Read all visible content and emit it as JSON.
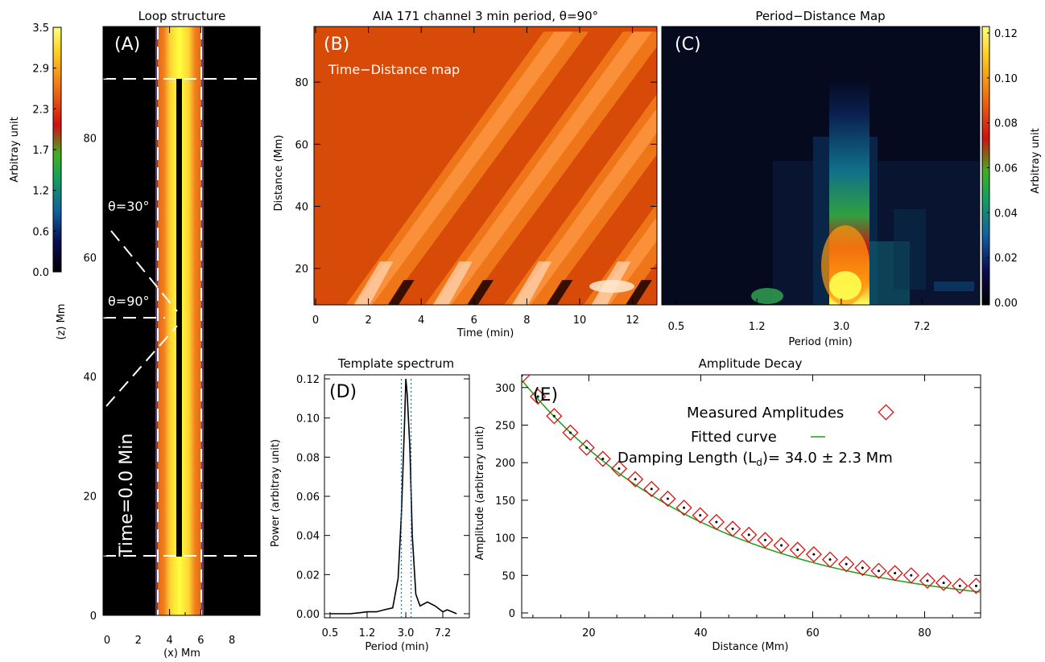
{
  "colorbar_left": {
    "label": "Arbitray unit",
    "ticks": [
      "0.0",
      "0.6",
      "1.2",
      "1.7",
      "2.3",
      "2.9",
      "3.5"
    ]
  },
  "panelA": {
    "tag": "(A)",
    "title": "Loop structure",
    "xlabel": "(x) Mm",
    "ylabel": "(z) Mm",
    "theta30": "θ=30°",
    "theta90": "θ=90°",
    "time_label": "Time=0.0 Min",
    "xticks": [
      "0",
      "2",
      "4",
      "6",
      "8"
    ],
    "yticks": [
      "0",
      "20",
      "40",
      "60",
      "80"
    ]
  },
  "panelB": {
    "tag": "(B)",
    "title": "AIA 171 channel 3 min period, θ=90°",
    "subtitle": "Time−Distance map",
    "xlabel": "Time (min)",
    "ylabel": "Distance (Mm)",
    "xticks": [
      "0",
      "2",
      "4",
      "6",
      "8",
      "10",
      "12"
    ],
    "yticks": [
      "20",
      "40",
      "60",
      "80"
    ]
  },
  "panelC": {
    "tag": "(C)",
    "title": "Period−Distance Map",
    "xlabel": "Period (min)",
    "xticks": [
      "0.5",
      "1.2",
      "3.0",
      "7.2"
    ],
    "colorbar_label": "Arbitray unit",
    "colorbar_ticks": [
      "0.00",
      "0.02",
      "0.04",
      "0.06",
      "0.08",
      "0.10",
      "0.12"
    ]
  },
  "panelD": {
    "tag": "(D)",
    "title": "Template spectrum",
    "xlabel": "Period (min)",
    "ylabel": "Power (arbitray unit)",
    "xticks": [
      "0.5",
      "1.2",
      "3.0",
      "7.2"
    ],
    "yticks": [
      "0.00",
      "0.02",
      "0.04",
      "0.06",
      "0.08",
      "0.10",
      "0.12"
    ]
  },
  "panelE": {
    "tag": "(E)",
    "title": "Amplitude Decay",
    "xlabel": "Distance (Mm)",
    "ylabel": "Amplitude (arbitrary unit)",
    "legend_measured": "Measured Amplitudes",
    "legend_fitted": "Fitted curve",
    "damping_text": "Damping Length (L",
    "damping_sub": "d",
    "damping_value": ")= 34.0 ± 2.3 Mm",
    "xticks": [
      "20",
      "40",
      "60",
      "80"
    ],
    "yticks": [
      "0",
      "50",
      "100",
      "150",
      "200",
      "250",
      "300"
    ]
  },
  "colors": {
    "fit_line": "#1aa01a",
    "marker": "#e01010"
  },
  "chart_data": [
    {
      "type": "line",
      "panel": "D",
      "title": "Template spectrum",
      "xlabel": "Period (min)",
      "ylabel": "Power (arbitray unit)",
      "ylim": [
        0,
        0.12
      ],
      "x": [
        0.5,
        0.8,
        1.0,
        1.2,
        1.5,
        1.8,
        2.2,
        2.5,
        2.7,
        2.9,
        3.0,
        3.1,
        3.3,
        3.5,
        3.8,
        4.2,
        5.0,
        6.0,
        7.2,
        8.0,
        9.0,
        10.0
      ],
      "values": [
        0.0,
        0.0,
        0.0005,
        0.001,
        0.001,
        0.002,
        0.003,
        0.018,
        0.05,
        0.095,
        0.12,
        0.112,
        0.085,
        0.04,
        0.01,
        0.004,
        0.006,
        0.004,
        0.001,
        0.002,
        0.001,
        0.0
      ]
    },
    {
      "type": "scatter",
      "panel": "E",
      "title": "Amplitude Decay",
      "xlabel": "Distance (Mm)",
      "ylabel": "Amplitude (arbitrary unit)",
      "xlim": [
        8,
        90
      ],
      "ylim": [
        0,
        325
      ],
      "series": [
        {
          "name": "Measured Amplitudes",
          "x": [
            8,
            10.9,
            13.8,
            16.7,
            19.6,
            22.5,
            25.4,
            28.3,
            31.2,
            34.1,
            37,
            39.9,
            42.8,
            45.7,
            48.6,
            51.5,
            54.4,
            57.3,
            60.2,
            63.1,
            66,
            68.9,
            71.8,
            74.7,
            77.6,
            80.5,
            83.4,
            86.3,
            89.2
          ],
          "values": [
            316,
            288,
            262,
            240,
            220,
            205,
            192,
            178,
            165,
            152,
            140,
            130,
            121,
            112,
            104,
            97,
            90,
            84,
            78,
            71,
            65,
            60,
            56,
            53,
            50,
            43,
            40,
            36,
            36
          ]
        },
        {
          "name": "Fitted curve",
          "model": "exponential",
          "L_d": 34.0,
          "x": [
            8,
            20,
            30,
            40,
            50,
            60,
            70,
            80,
            90
          ],
          "values": [
            310,
            218,
            164,
            124,
            96,
            72,
            54,
            40,
            30
          ]
        }
      ]
    }
  ]
}
